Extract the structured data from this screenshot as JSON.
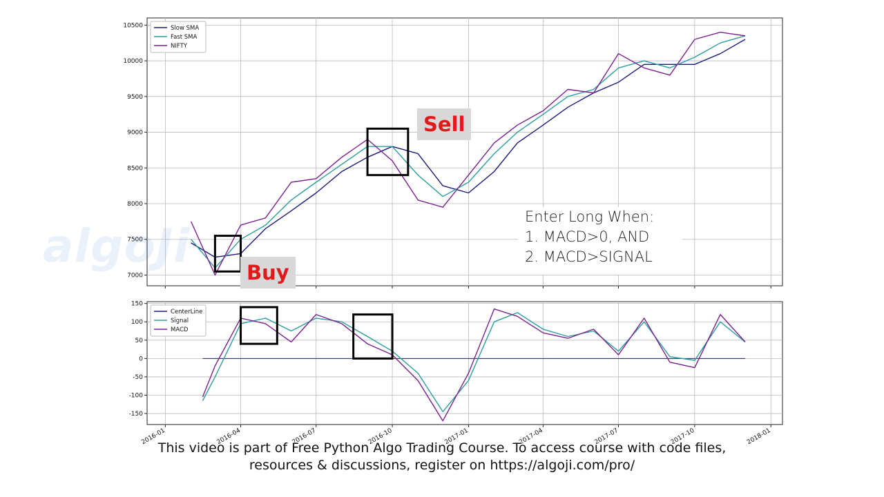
{
  "watermark": "algoJi",
  "annotations": {
    "buy": "Buy",
    "sell": "Sell",
    "rule_title": "Enter Long When:",
    "rule_1": "1.  MACD>0, AND",
    "rule_2": "2.  MACD>SIGNAL"
  },
  "caption": {
    "line1": "This video is part of Free Python Algo Trading Course. To access course with code files,",
    "line2": "resources & discussions, register on https://algoji.com/pro/"
  },
  "colors": {
    "slow_sma": "#1a1a7a",
    "fast_sma": "#2a9d9d",
    "nifty": "#7a1f8f",
    "centerline": "#1a1a7a",
    "signal": "#2a9d9d",
    "macd": "#7a1f8f",
    "highlight": "#000000",
    "red_label": "#e01a1a"
  },
  "chart_data": [
    {
      "type": "line",
      "title": "",
      "xlabel": "",
      "ylabel": "",
      "ylim": [
        6850,
        10600
      ],
      "yticks": [
        7000,
        7500,
        8000,
        8500,
        9000,
        9500,
        10000,
        10500
      ],
      "grid": true,
      "legend": "top-left",
      "x": [
        "2016-02-01",
        "2016-03-01",
        "2016-04-01",
        "2016-05-01",
        "2016-06-01",
        "2016-07-01",
        "2016-08-01",
        "2016-09-01",
        "2016-10-01",
        "2016-11-01",
        "2016-12-01",
        "2017-01-01",
        "2017-02-01",
        "2017-03-01",
        "2017-04-01",
        "2017-05-01",
        "2017-06-01",
        "2017-07-01",
        "2017-08-01",
        "2017-09-01",
        "2017-10-01",
        "2017-11-01",
        "2017-12-01"
      ],
      "series": [
        {
          "name": "Slow SMA",
          "values": [
            7450,
            7250,
            7300,
            7650,
            7900,
            8150,
            8450,
            8650,
            8800,
            8700,
            8250,
            8150,
            8450,
            8850,
            9100,
            9350,
            9550,
            9700,
            9950,
            9950,
            9950,
            10100,
            10300
          ]
        },
        {
          "name": "Fast SMA",
          "values": [
            7500,
            7100,
            7500,
            7700,
            8050,
            8300,
            8550,
            8800,
            8800,
            8400,
            8100,
            8300,
            8700,
            9000,
            9250,
            9500,
            9600,
            9900,
            10000,
            9900,
            10050,
            10250,
            10350
          ]
        },
        {
          "name": "NIFTY",
          "values": [
            7750,
            7000,
            7700,
            7800,
            8300,
            8350,
            8650,
            8900,
            8600,
            8050,
            7950,
            8400,
            8850,
            9100,
            9300,
            9600,
            9550,
            10100,
            9900,
            9800,
            10300,
            10400,
            10350
          ]
        }
      ],
      "highlights": [
        {
          "label": "Buy",
          "x": [
            "2016-03-01",
            "2016-04-01"
          ],
          "y": [
            7050,
            7550
          ]
        },
        {
          "label": "Sell",
          "x": [
            "2016-09-01",
            "2016-10-20"
          ],
          "y": [
            8400,
            9050
          ]
        }
      ]
    },
    {
      "type": "line",
      "title": "",
      "xlabel": "",
      "ylabel": "",
      "ylim": [
        -180,
        155
      ],
      "yticks": [
        -150,
        -100,
        -50,
        0,
        50,
        100,
        150
      ],
      "xticks": [
        "2016-01",
        "2016-04",
        "2016-07",
        "2016-10",
        "2017-01",
        "2017-04",
        "2017-07",
        "2017-10",
        "2018-01"
      ],
      "grid": true,
      "legend": "top-left",
      "x": [
        "2016-02-15",
        "2016-03-01",
        "2016-04-01",
        "2016-05-01",
        "2016-06-01",
        "2016-07-01",
        "2016-08-01",
        "2016-09-01",
        "2016-10-01",
        "2016-11-01",
        "2016-12-01",
        "2017-01-01",
        "2017-02-01",
        "2017-03-01",
        "2017-04-01",
        "2017-05-01",
        "2017-06-01",
        "2017-07-01",
        "2017-08-01",
        "2017-09-01",
        "2017-10-01",
        "2017-11-01",
        "2017-12-01"
      ],
      "series": [
        {
          "name": "CenterLine",
          "values": [
            0,
            0,
            0,
            0,
            0,
            0,
            0,
            0,
            0,
            0,
            0,
            0,
            0,
            0,
            0,
            0,
            0,
            0,
            0,
            0,
            0,
            0,
            0
          ]
        },
        {
          "name": "Signal",
          "values": [
            -115,
            -50,
            95,
            110,
            75,
            110,
            100,
            60,
            20,
            -40,
            -145,
            -60,
            100,
            125,
            80,
            60,
            75,
            20,
            100,
            5,
            -5,
            100,
            45
          ]
        },
        {
          "name": "MACD",
          "values": [
            -105,
            -20,
            110,
            95,
            45,
            120,
            95,
            40,
            10,
            -60,
            -170,
            -40,
            135,
            115,
            70,
            55,
            80,
            10,
            110,
            -10,
            -25,
            120,
            45
          ]
        }
      ],
      "highlights": [
        {
          "x": [
            "2016-04-01",
            "2016-05-15"
          ],
          "y": [
            40,
            140
          ]
        },
        {
          "x": [
            "2016-08-15",
            "2016-10-01"
          ],
          "y": [
            0,
            120
          ]
        }
      ]
    }
  ]
}
